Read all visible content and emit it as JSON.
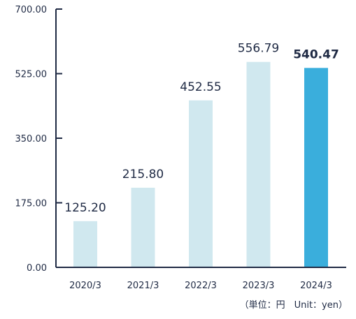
{
  "chart_data": {
    "type": "bar",
    "categories": [
      "2020/3",
      "2021/3",
      "2022/3",
      "2023/3",
      "2024/3"
    ],
    "values": [
      125.2,
      215.8,
      452.55,
      556.79,
      540.47
    ],
    "value_labels": [
      "125.20",
      "215.80",
      "452.55",
      "556.79",
      "540.47"
    ],
    "highlight_index": 4,
    "y_ticks": [
      "0.00",
      "175.00",
      "350.00",
      "525.00",
      "700.00"
    ],
    "ylim": [
      0,
      700
    ],
    "grid": false,
    "colors": {
      "bar": "#d0e8ef",
      "highlight": "#3aaedc",
      "axis": "#1f2a44"
    },
    "unit_note": "（単位：円　Unit：yen）"
  }
}
